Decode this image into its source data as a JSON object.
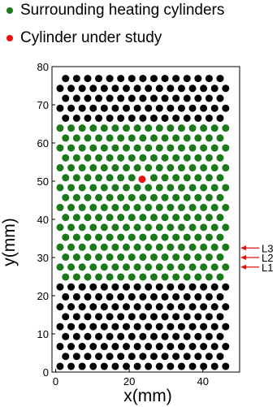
{
  "legend": {
    "items": [
      {
        "label": "Surrounding heating cylinders",
        "color": "#1a7a1a"
      },
      {
        "label": "Cylinder under study",
        "color": "#ee1111"
      }
    ]
  },
  "chart_data": {
    "type": "scatter",
    "xlabel": "x(mm)",
    "ylabel": "y(mm)",
    "xlim": [
      -1,
      50
    ],
    "ylim": [
      0,
      80
    ],
    "xticks": [
      0,
      20,
      40
    ],
    "yticks": [
      0,
      10,
      20,
      30,
      40,
      50,
      60,
      70,
      80
    ],
    "grid": false,
    "legend_position": "top",
    "lattice": {
      "x_pitch_mm": 3.0,
      "row_pitch_mm": 2.6,
      "rows": 30,
      "y_first_row_mm": 1.5,
      "x_start_even_row_mm": 1.2,
      "x_start_odd_row_mm": 2.7,
      "points_per_even_row": 16,
      "points_per_odd_row": 15
    },
    "series": [
      {
        "name": "Surrounding heating cylinders",
        "color": "#1a7a1a",
        "y_range_mm": [
          24,
          64
        ]
      },
      {
        "name": "Cylinder under study",
        "color": "#ee1111",
        "points": [
          [
            23.5,
            50.5
          ]
        ]
      },
      {
        "color": "#000000",
        "y_range_mm": [
          0,
          24
        ]
      },
      {
        "color": "#000000",
        "y_range_mm": [
          64,
          80
        ]
      }
    ],
    "annotations": [
      {
        "label": "L3",
        "y": 32.5
      },
      {
        "label": "L2",
        "y": 30.0
      },
      {
        "label": "L1",
        "y": 27.5
      }
    ]
  }
}
